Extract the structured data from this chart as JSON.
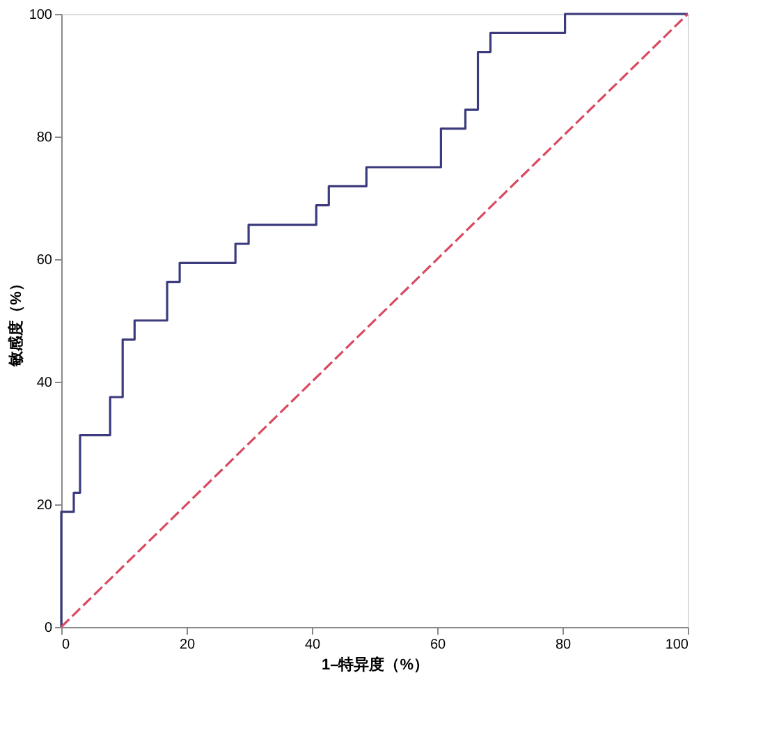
{
  "chart_data": {
    "type": "step",
    "xlabel": "1–特异度（%）",
    "ylabel": "敏感度（%）",
    "xlim": [
      0,
      100
    ],
    "ylim": [
      0,
      100
    ],
    "xticks": [
      0,
      20,
      40,
      60,
      80,
      100
    ],
    "yticks": [
      0,
      20,
      40,
      60,
      80,
      100
    ],
    "grid": false,
    "series": [
      {
        "color": "#3b3b7e",
        "line_style": "solid",
        "x": [
          0,
          0,
          2,
          3,
          7.8,
          9.8,
          11.7,
          16.9,
          18.9,
          27.8,
          29.9,
          40.7,
          42.7,
          48.7,
          60.6,
          64.5,
          66.5,
          68.5,
          80.4,
          100
        ],
        "values": [
          0,
          18.8,
          21.9,
          31.3,
          37.5,
          46.9,
          50,
          56.3,
          59.4,
          62.5,
          65.6,
          68.8,
          71.9,
          75,
          81.3,
          84.4,
          93.8,
          96.9,
          100,
          100
        ]
      },
      {
        "type": "line",
        "color": "#d94a62",
        "line_style": "dashed",
        "x": [
          0,
          100
        ],
        "values": [
          0,
          100
        ]
      }
    ]
  }
}
